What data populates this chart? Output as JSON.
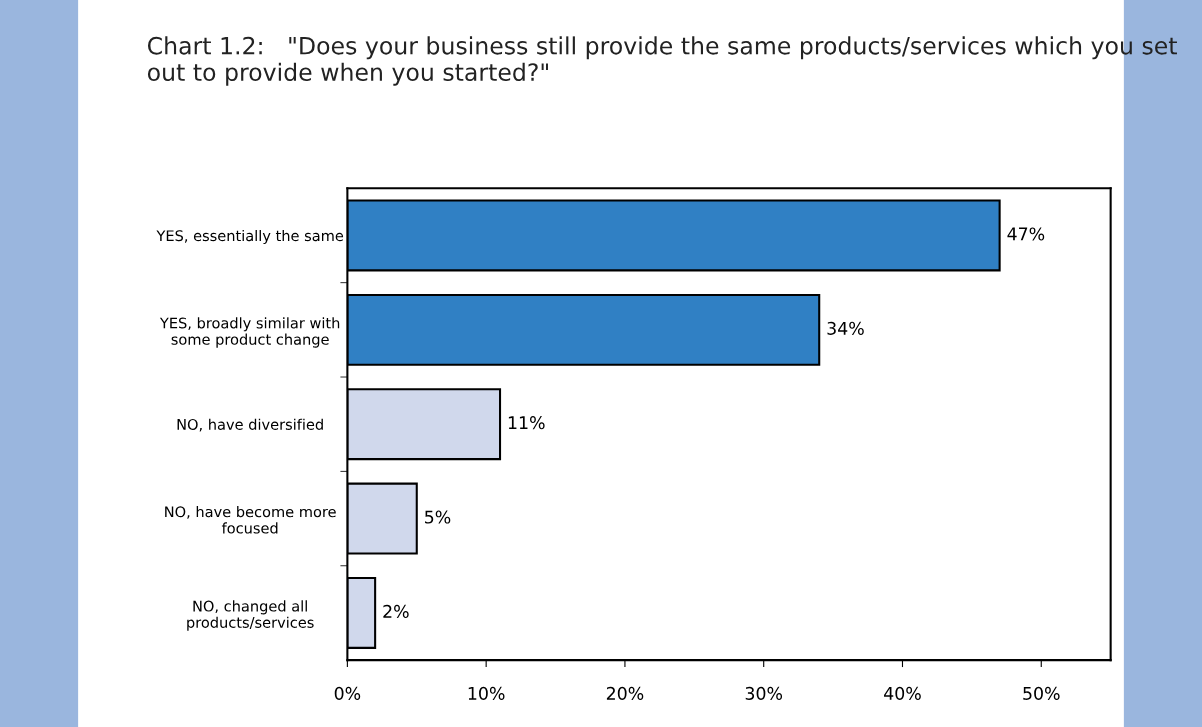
{
  "chart_data": {
    "type": "bar",
    "orientation": "horizontal",
    "title": "Chart 1.2:   \"Does your business still provide the same products/services which you set out to provide when you started?\"",
    "categories": [
      "YES, essentially the same",
      "YES, broadly similar with\nsome product change",
      "NO, have diversified",
      "NO, have become more\nfocused",
      "NO, changed all\nproducts/services"
    ],
    "values": [
      47,
      34,
      11,
      5,
      2
    ],
    "colors": [
      "#3080c4",
      "#3080c4",
      "#d0d8ec",
      "#d0d8ec",
      "#d0d8ec"
    ],
    "value_labels": [
      "47%",
      "34%",
      "11%",
      "5%",
      "2%"
    ],
    "xlim": [
      0,
      55
    ],
    "xticks": [
      {
        "value": 0,
        "label": "0%"
      },
      {
        "value": 10,
        "label": "10%"
      },
      {
        "value": 20,
        "label": "20%"
      },
      {
        "value": 30,
        "label": "30%"
      },
      {
        "value": 40,
        "label": "40%"
      },
      {
        "value": 50,
        "label": "50%"
      }
    ],
    "grid": false,
    "legend": false
  }
}
